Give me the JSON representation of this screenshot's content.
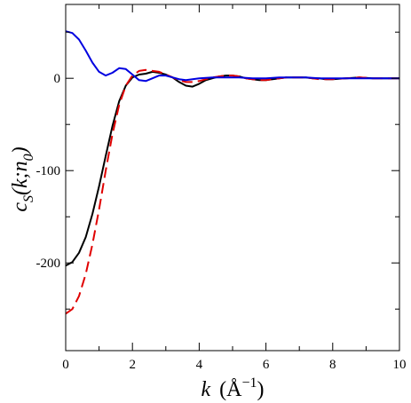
{
  "chart_data": {
    "type": "line",
    "title": "",
    "xlabel": {
      "var": "k",
      "unit": "(Å",
      "unit_exp": "−1",
      "unit_close": ")"
    },
    "ylabel": {
      "main": "c",
      "sub1": "S",
      "mid": "(k;n",
      "sub2": "0",
      "end": ")"
    },
    "xlim": [
      0,
      10
    ],
    "ylim": [
      -295,
      80
    ],
    "x_ticks": [
      0,
      2,
      4,
      6,
      8,
      10
    ],
    "x_tick_labels": [
      "0",
      "2",
      "4",
      "6",
      "8",
      "10"
    ],
    "y_ticks": [
      0,
      -100,
      -200
    ],
    "y_tick_labels": [
      "0",
      "-100",
      "-200"
    ],
    "grid": false,
    "legend": "none",
    "series": [
      {
        "color": "#000000",
        "dash": "solid",
        "points": [
          [
            0,
            -203
          ],
          [
            0.2,
            -199
          ],
          [
            0.4,
            -189
          ],
          [
            0.6,
            -172
          ],
          [
            0.8,
            -147
          ],
          [
            1.0,
            -117
          ],
          [
            1.2,
            -84
          ],
          [
            1.4,
            -52
          ],
          [
            1.6,
            -25
          ],
          [
            1.8,
            -8
          ],
          [
            2.0,
            1
          ],
          [
            2.2,
            4
          ],
          [
            2.4,
            5
          ],
          [
            2.6,
            7
          ],
          [
            2.8,
            6
          ],
          [
            3.0,
            4
          ],
          [
            3.2,
            1
          ],
          [
            3.4,
            -4
          ],
          [
            3.6,
            -8
          ],
          [
            3.8,
            -9
          ],
          [
            4.0,
            -6
          ],
          [
            4.2,
            -2
          ],
          [
            4.4,
            0
          ],
          [
            4.6,
            2
          ],
          [
            4.8,
            3
          ],
          [
            5.0,
            3
          ],
          [
            5.2,
            2
          ],
          [
            5.4,
            0
          ],
          [
            5.6,
            -1
          ],
          [
            5.8,
            -2
          ],
          [
            6.0,
            -2
          ],
          [
            6.2,
            -1
          ],
          [
            6.4,
            0
          ],
          [
            6.6,
            1
          ],
          [
            6.8,
            1
          ],
          [
            7.0,
            1
          ],
          [
            7.2,
            1
          ],
          [
            7.4,
            0
          ],
          [
            7.6,
            0
          ],
          [
            7.8,
            -1
          ],
          [
            8.0,
            -1
          ],
          [
            8.4,
            0
          ],
          [
            8.8,
            1
          ],
          [
            9.2,
            0
          ],
          [
            9.6,
            0
          ],
          [
            10.0,
            0
          ]
        ]
      },
      {
        "color": "#e00000",
        "dash": "dashed",
        "points": [
          [
            0,
            -255
          ],
          [
            0.2,
            -250
          ],
          [
            0.4,
            -236
          ],
          [
            0.6,
            -212
          ],
          [
            0.8,
            -180
          ],
          [
            1.0,
            -142
          ],
          [
            1.2,
            -100
          ],
          [
            1.4,
            -61
          ],
          [
            1.6,
            -29
          ],
          [
            1.8,
            -8
          ],
          [
            2.0,
            3
          ],
          [
            2.2,
            8
          ],
          [
            2.4,
            9
          ],
          [
            2.6,
            8
          ],
          [
            2.8,
            7
          ],
          [
            3.0,
            4
          ],
          [
            3.2,
            1
          ],
          [
            3.4,
            -2
          ],
          [
            3.6,
            -4
          ],
          [
            3.8,
            -4
          ],
          [
            4.0,
            -3
          ],
          [
            4.2,
            -1
          ],
          [
            4.4,
            1
          ],
          [
            4.6,
            2
          ],
          [
            4.8,
            3
          ],
          [
            5.0,
            3
          ],
          [
            5.2,
            2
          ],
          [
            5.4,
            0
          ],
          [
            5.6,
            -1
          ],
          [
            5.8,
            -2
          ],
          [
            6.0,
            -2
          ],
          [
            6.2,
            -1
          ],
          [
            6.4,
            0
          ],
          [
            6.6,
            1
          ],
          [
            6.8,
            1
          ],
          [
            7.0,
            1
          ],
          [
            7.2,
            1
          ],
          [
            7.4,
            0
          ],
          [
            7.6,
            -1
          ],
          [
            7.8,
            -1
          ],
          [
            8.0,
            -1
          ],
          [
            8.4,
            0
          ],
          [
            8.8,
            1
          ],
          [
            9.2,
            0
          ],
          [
            9.6,
            0
          ],
          [
            10.0,
            0
          ]
        ]
      },
      {
        "color": "#0000e0",
        "dash": "solid",
        "points": [
          [
            0,
            51
          ],
          [
            0.2,
            49
          ],
          [
            0.4,
            42
          ],
          [
            0.6,
            30
          ],
          [
            0.8,
            17
          ],
          [
            1.0,
            7
          ],
          [
            1.2,
            3
          ],
          [
            1.4,
            6
          ],
          [
            1.6,
            11
          ],
          [
            1.8,
            10
          ],
          [
            2.0,
            4
          ],
          [
            2.2,
            -2
          ],
          [
            2.4,
            -3
          ],
          [
            2.6,
            0
          ],
          [
            2.8,
            3
          ],
          [
            3.0,
            3
          ],
          [
            3.2,
            1
          ],
          [
            3.4,
            -1
          ],
          [
            3.6,
            -2
          ],
          [
            3.8,
            -1
          ],
          [
            4.0,
            0
          ],
          [
            4.4,
            1
          ],
          [
            4.8,
            1
          ],
          [
            5.2,
            1
          ],
          [
            5.6,
            0
          ],
          [
            6.0,
            0
          ],
          [
            6.4,
            1
          ],
          [
            6.8,
            1
          ],
          [
            7.2,
            1
          ],
          [
            7.6,
            0
          ],
          [
            8.0,
            0
          ],
          [
            8.4,
            0
          ],
          [
            8.8,
            0
          ],
          [
            9.2,
            0
          ],
          [
            9.6,
            0
          ],
          [
            10.0,
            0
          ]
        ]
      }
    ]
  }
}
